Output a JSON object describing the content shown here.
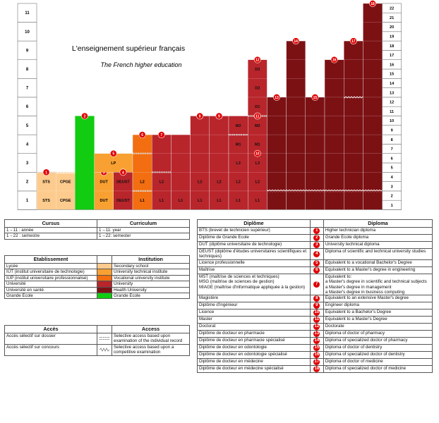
{
  "title": "L'enseignement supérieur français",
  "subtitle": "The French higher education",
  "colors": {
    "lycee": "#fdcb8d",
    "iut": "#f8a132",
    "iup": "#f26e10",
    "university": "#b8252b",
    "health": "#7c1114",
    "grande_ecole": "#11cc11",
    "grid": "#999999",
    "marker": "#e00000"
  },
  "chart_data": {
    "type": "diagram",
    "left_axis_labels": [
      "1",
      "2",
      "3",
      "4",
      "5",
      "6",
      "7",
      "8",
      "9",
      "10",
      "11"
    ],
    "right_axis_labels": [
      "1",
      "2",
      "3",
      "4",
      "5",
      "6",
      "7",
      "8",
      "9",
      "10",
      "11",
      "12",
      "13",
      "14",
      "15",
      "16",
      "17",
      "18",
      "19",
      "20",
      "21",
      "22"
    ],
    "bars": [
      {
        "key": "sts",
        "category": "lycee",
        "top": 4,
        "labels": [
          {
            "text": "STS",
            "half": 1
          },
          {
            "text": "STS",
            "half": 3
          }
        ],
        "marker": "1",
        "marker_top": true,
        "access": [
          {
            "type": "dossier",
            "at": 4
          }
        ]
      },
      {
        "key": "cpge",
        "category": "lycee",
        "top": 4,
        "labels": [
          {
            "text": "CPGE",
            "half": 1
          },
          {
            "text": "CPGE",
            "half": 3
          }
        ],
        "access": [
          {
            "type": "concours",
            "at": 4
          }
        ]
      },
      {
        "key": "grande_ecole",
        "category": "grande_ecole",
        "top": 10,
        "base": 0,
        "inset": true,
        "marker": "2",
        "marker_top": true,
        "access": []
      },
      {
        "key": "dut",
        "category": "iut",
        "top": 4,
        "labels": [
          {
            "text": "DUT",
            "half": 1
          },
          {
            "text": "DUT",
            "half": 3
          }
        ],
        "marker": "3",
        "marker_half": 4,
        "access": []
      },
      {
        "key": "lp",
        "category": "iut",
        "span": 2,
        "base": 4,
        "top": 6,
        "labels": [
          {
            "text": "LP",
            "half": 5
          }
        ],
        "marker": "5",
        "marker_top": true,
        "access": []
      },
      {
        "key": "deust",
        "category": "university",
        "top": 4,
        "labels": [
          {
            "text": "DEUST",
            "half": 1
          },
          {
            "text": "DEUST",
            "half": 3
          }
        ],
        "marker": "4",
        "marker_half": 4,
        "access": []
      },
      {
        "key": "iup",
        "category": "iup",
        "top": 8,
        "labels": [
          {
            "text": "L2",
            "half": 3
          },
          {
            "text": "L1",
            "half": 1
          }
        ],
        "marker": "6",
        "marker_top": true,
        "access": [
          {
            "type": "dossier",
            "at": 2
          },
          {
            "type": "dossier",
            "at": 6
          }
        ]
      },
      {
        "key": "mst",
        "category": "university",
        "top": 8,
        "labels": [
          {
            "text": "L2",
            "half": 3
          },
          {
            "text": "L1",
            "half": 1
          }
        ],
        "marker": "7",
        "marker_top": true,
        "access": [
          {
            "type": "dossier",
            "at": 4
          }
        ]
      },
      {
        "key": "mag",
        "category": "university",
        "top": 8,
        "labels": [
          {
            "text": "L1",
            "half": 1
          }
        ],
        "marker": "",
        "access": []
      },
      {
        "key": "ing",
        "category": "university",
        "top": 10,
        "labels": [
          {
            "text": "L2",
            "half": 3
          },
          {
            "text": "L1",
            "half": 1
          }
        ],
        "marker": "8",
        "marker_top": true,
        "access": []
      },
      {
        "key": "mag2",
        "category": "university",
        "top": 10,
        "labels": [
          {
            "text": "L2",
            "half": 3
          },
          {
            "text": "L1",
            "half": 1
          }
        ],
        "marker": "9",
        "marker_top": true,
        "access": []
      },
      {
        "key": "univ",
        "category": "university",
        "top": 10,
        "labels": [
          {
            "text": "L2",
            "half": 3
          },
          {
            "text": "L1",
            "half": 1
          },
          {
            "text": "L3",
            "half": 5
          },
          {
            "text": "M1",
            "half": 7
          },
          {
            "text": "M2",
            "half": 9
          }
        ],
        "marker": "",
        "access": [
          {
            "type": "dossier",
            "at": 8
          }
        ]
      },
      {
        "key": "doct",
        "category": "university",
        "top": 16,
        "labels": [
          {
            "text": "L2",
            "half": 3
          },
          {
            "text": "L1",
            "half": 1
          },
          {
            "text": "L3",
            "half": 5
          },
          {
            "text": "M1",
            "half": 7
          },
          {
            "text": "M2",
            "half": 9
          },
          {
            "text": "D1",
            "half": 11
          },
          {
            "text": "D2",
            "half": 13
          },
          {
            "text": "D3",
            "half": 15
          }
        ],
        "marker": "12",
        "marker_top": true,
        "extra_markers": [
          {
            "text": "11",
            "half": 10
          },
          {
            "text": "10",
            "half": 6
          }
        ],
        "access": [
          {
            "type": "dossier",
            "at": 10
          }
        ]
      },
      {
        "key": "pharm",
        "category": "health",
        "top": 12,
        "marker": "13",
        "marker_top": true,
        "access": [
          {
            "type": "concours",
            "at": 2
          }
        ]
      },
      {
        "key": "pharm_spec",
        "category": "health",
        "top": 18,
        "marker": "14",
        "marker_top": true,
        "access": [
          {
            "type": "concours",
            "at": 2
          }
        ]
      },
      {
        "key": "odonto",
        "category": "health",
        "top": 12,
        "marker": "15",
        "marker_top": true,
        "access": [
          {
            "type": "concours",
            "at": 2
          }
        ]
      },
      {
        "key": "odonto_spec",
        "category": "health",
        "top": 16,
        "marker": "16",
        "marker_top": true,
        "access": [
          {
            "type": "concours",
            "at": 2
          }
        ]
      },
      {
        "key": "med",
        "category": "health",
        "top": 18,
        "marker": "17",
        "marker_top": true,
        "access": [
          {
            "type": "concours",
            "at": 2
          },
          {
            "type": "concours",
            "at": 12
          }
        ]
      },
      {
        "key": "med_spec",
        "category": "health",
        "top": 22,
        "marker": "18",
        "marker_top": true,
        "access": [
          {
            "type": "concours",
            "at": 2
          }
        ]
      }
    ]
  },
  "cursus": {
    "header_left": "Cursus",
    "header_right": "Curriculum",
    "rows": [
      {
        "left": "1→11 : année",
        "right": "1→11: year"
      },
      {
        "left": "1→22 : semestre",
        "right": "1→22: semester"
      }
    ]
  },
  "etablissement": {
    "header_left": "Etablissement",
    "header_right": "Institution",
    "rows": [
      {
        "left": "Lycée",
        "color": "#fdcb8d",
        "right": "Secondary school"
      },
      {
        "left": "IUT (institut universitaire de technologie)",
        "color": "#f8a132",
        "right": "University technical institute"
      },
      {
        "left": "IUP (institut universitaire professionnalisé)",
        "color": "#f26e10",
        "right": "Vocational university institute"
      },
      {
        "left": "Université",
        "color": "#b8252b",
        "right": "University"
      },
      {
        "left": "Université en santé",
        "color": "#7c1114",
        "right": "Health University"
      },
      {
        "left": "Grande Ecole",
        "color": "#11cc11",
        "right": "Grande Ecole"
      }
    ]
  },
  "acces": {
    "header_left": "Accès",
    "header_right": "Access",
    "rows": [
      {
        "left": "Accès sélectif sur dossier",
        "symbol": "dossier",
        "right": "Selective access based upon examination of the individual record"
      },
      {
        "left": "Accès sélectif sur concours",
        "symbol": "concours",
        "right": "Selective access based upon a competitive examination"
      }
    ]
  },
  "diplome": {
    "header_left": "Diplôme",
    "header_right": "Diploma",
    "rows": [
      {
        "num": "1",
        "left": "BTS (brevet de technicien supérieur)",
        "right": "Higher technician diploma"
      },
      {
        "num": "2",
        "left": "Diplôme de Grande Ecole",
        "right": "Grande Ecole diploma"
      },
      {
        "num": "3",
        "left": "DUT (diplôme universitaire de technologie)",
        "right": "University technical diploma"
      },
      {
        "num": "4",
        "left": "DEUST (diplôme d'études universitaires scientifiques et techniques)",
        "right": "Diploma of scientific and technical university studies"
      },
      {
        "num": "5",
        "left": "Licence professionnelle",
        "right": "Equivalent to a vocational Bachelor's Degree"
      },
      {
        "num": "6",
        "left": "Maîtrise",
        "right": "Equivalent to a Master's degree in engineering"
      },
      {
        "num": "7",
        "left": "MST (maîtrise de sciences et techniques)\nMSG (maîtrise de sciences de gestion)\nMIAGE (maîtrise d'informatique appliquée à la gestion)",
        "right": "Equivalent to:\na Master's degree in scientific and technical subjects\na Master's degree in management\na Master's degree in business computing"
      },
      {
        "num": "8",
        "left": "Magistère",
        "right": "Equivalent to an extensive Master's degree"
      },
      {
        "num": "9",
        "left": "Diplôme d'ingénieur",
        "right": "Engineer diploma"
      },
      {
        "num": "10",
        "left": "Licence",
        "right": "Equivalent to a Bachelor's Degree"
      },
      {
        "num": "11",
        "left": "Master",
        "right": "Equivalent to a Master's Degree"
      },
      {
        "num": "12",
        "left": "Doctorat",
        "right": "Doctorate"
      },
      {
        "num": "13",
        "left": "Diplôme de docteur en pharmacie",
        "right": "Diploma of doctor of pharmacy"
      },
      {
        "num": "14",
        "left": "Diplôme de docteur en pharmacie spécialisé",
        "right": "Diploma of specialized doctor of pharmacy"
      },
      {
        "num": "15",
        "left": "Diplôme de docteur en odontologie",
        "right": "Diploma of doctor of dentistry"
      },
      {
        "num": "16",
        "left": "Diplôme de docteur en odontologie spécialisé",
        "right": "Diploma of specialized doctor of dentistry"
      },
      {
        "num": "17",
        "left": "Diplôme de docteur en médecine",
        "right": "Diploma of doctor of medicine"
      },
      {
        "num": "18",
        "left": "Diplôme de docteur en médecine spécialisé",
        "right": "Diploma of specialized doctor of medicine"
      }
    ]
  }
}
